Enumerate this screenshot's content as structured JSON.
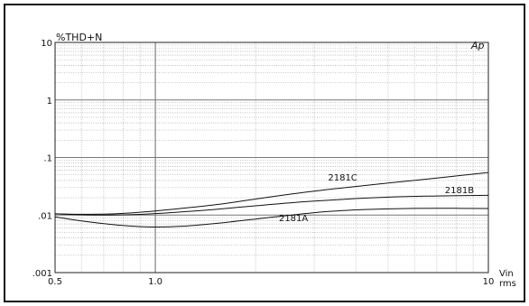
{
  "chart_data": {
    "type": "line",
    "title": "",
    "ylabel": "%THD+N",
    "xlabel": "Vin rms",
    "xlabel_lines": [
      "Vin",
      "rms"
    ],
    "corner_logo": "Ap",
    "x_scale": "log",
    "y_scale": "log",
    "xlim": [
      0.5,
      10
    ],
    "ylim": [
      0.001,
      10
    ],
    "grid": true,
    "x_ticks": [
      {
        "value": 0.5,
        "label": "0.5"
      },
      {
        "value": 1.0,
        "label": "1.0"
      },
      {
        "value": 10,
        "label": "10"
      }
    ],
    "y_ticks": [
      {
        "value": 10,
        "label": "10"
      },
      {
        "value": 1,
        "label": "1"
      },
      {
        "value": 0.1,
        "label": ".1"
      },
      {
        "value": 0.01,
        "label": ".01"
      },
      {
        "value": 0.001,
        "label": ".001"
      }
    ],
    "series": [
      {
        "name": "2181A",
        "x": [
          0.5,
          0.6,
          0.7,
          0.8,
          0.9,
          1.0,
          1.2,
          1.5,
          2.0,
          3.0,
          4.0,
          5.0,
          7.0,
          10.0
        ],
        "y": [
          0.0093,
          0.0079,
          0.0071,
          0.0066,
          0.0063,
          0.0062,
          0.0064,
          0.0071,
          0.0085,
          0.011,
          0.0123,
          0.0128,
          0.0131,
          0.013
        ]
      },
      {
        "name": "2181B",
        "x": [
          0.5,
          0.6,
          0.7,
          0.8,
          1.0,
          1.5,
          2.0,
          3.0,
          5.0,
          7.0,
          10.0
        ],
        "y": [
          0.0105,
          0.0101,
          0.01,
          0.0101,
          0.0106,
          0.0125,
          0.0145,
          0.0175,
          0.0205,
          0.0215,
          0.022
        ]
      },
      {
        "name": "2181C",
        "x": [
          0.5,
          0.6,
          0.7,
          0.8,
          1.0,
          1.5,
          2.0,
          3.0,
          5.0,
          7.0,
          10.0
        ],
        "y": [
          0.0105,
          0.0103,
          0.0104,
          0.0107,
          0.0118,
          0.015,
          0.019,
          0.026,
          0.036,
          0.044,
          0.055
        ]
      }
    ],
    "annotations": [
      {
        "text": "2181C",
        "x": 3.3,
        "y": 0.04
      },
      {
        "text": "2181B",
        "x": 7.4,
        "y": 0.024
      },
      {
        "text": "2181A",
        "x": 2.35,
        "y": 0.0078
      }
    ]
  }
}
